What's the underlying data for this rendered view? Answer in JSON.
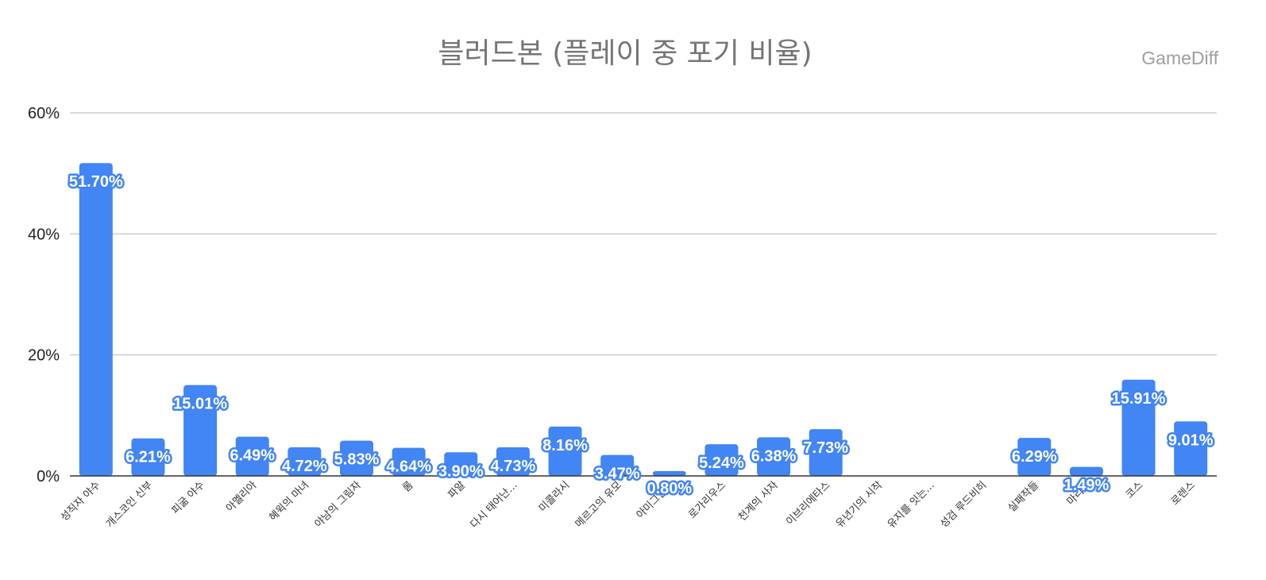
{
  "chart_data": {
    "type": "bar",
    "title": "블러드본 (플레이 중 포기 비율)",
    "watermark": "GameDiff",
    "categories": [
      "성직자 야수",
      "개스코인 신부",
      "피굶 야수",
      "아멜리아",
      "혜윅의 마녀",
      "야남의 그림자",
      "롬",
      "파알",
      "다시 태어난…",
      "미콜라시",
      "메르고의 유모",
      "아미그달라",
      "로가리우스",
      "천계의 사자",
      "이브리에타스",
      "유년기의 시작",
      "유지를 잇는…",
      "성검 루드비히",
      "실패작들",
      "마리아",
      "코스",
      "로렌스"
    ],
    "values": [
      51.7,
      6.21,
      15.01,
      6.49,
      4.72,
      5.83,
      4.64,
      3.9,
      4.73,
      8.16,
      3.47,
      0.8,
      5.24,
      6.38,
      7.73,
      null,
      null,
      null,
      6.29,
      1.49,
      15.91,
      9.01
    ],
    "value_labels": [
      "51.70%",
      "6.21%",
      "15.01%",
      "6.49%",
      "4.72%",
      "5.83%",
      "4.64%",
      "3.90%",
      "4.73%",
      "8.16%",
      "3.47%",
      "0.80%",
      "5.24%",
      "6.38%",
      "7.73%",
      "",
      "",
      "",
      "6.29%",
      "1.49%",
      "15.91%",
      "9.01%"
    ],
    "yticks": [
      "0%",
      "20%",
      "40%",
      "60%"
    ],
    "ylim": [
      0,
      60
    ],
    "grid": true,
    "bar_color": "#4285f4",
    "grid_color": "#cccccc"
  }
}
